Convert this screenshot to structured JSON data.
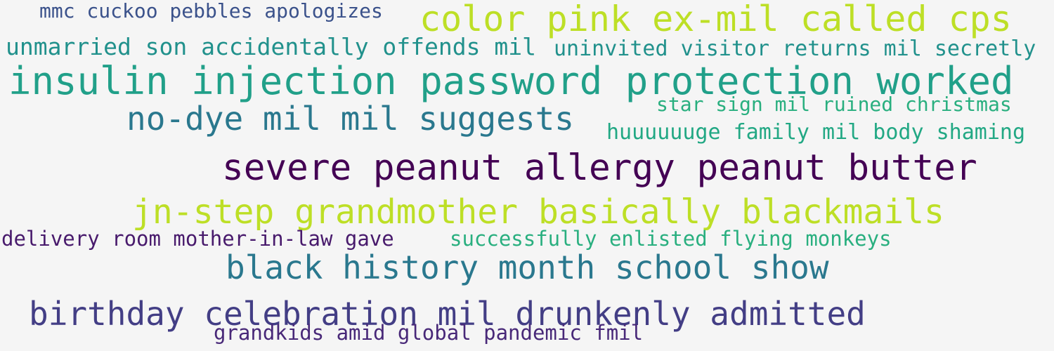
{
  "phrases": [
    {
      "text": "mmc cuckoo pebbles apologizes",
      "color": "#3b528b"
    },
    {
      "text": "color pink ex-mil called cps",
      "color": "#bddf26"
    },
    {
      "text": "unmarried son accidentally offends mil",
      "color": "#21918c"
    },
    {
      "text": "uninvited visitor returns mil secretly",
      "color": "#21918c"
    },
    {
      "text": "insulin injection password protection worked",
      "color": "#21a089"
    },
    {
      "text": "no-dye mil mil suggests",
      "color": "#2a788e"
    },
    {
      "text": "star sign mil ruined christmas",
      "color": "#29af7f"
    },
    {
      "text": "huuuuuuge family mil body shaming",
      "color": "#22a884"
    },
    {
      "text": "severe peanut allergy peanut butter",
      "color": "#440154"
    },
    {
      "text": "jn-step grandmother basically blackmails",
      "color": "#bddf26"
    },
    {
      "text": "delivery room mother-in-law gave",
      "color": "#481a6c"
    },
    {
      "text": "successfully enlisted flying monkeys",
      "color": "#29af7f"
    },
    {
      "text": "black history month school show",
      "color": "#2a788e"
    },
    {
      "text": "birthday celebration mil drunkenly admitted",
      "color": "#433e85"
    },
    {
      "text": "grandkids amid global pandemic fmil",
      "color": "#482878"
    }
  ]
}
